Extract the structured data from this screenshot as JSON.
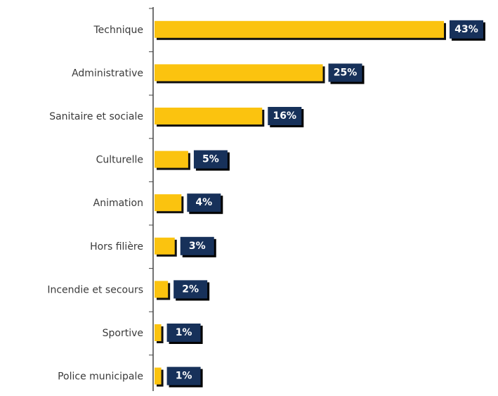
{
  "chart_data": {
    "type": "bar",
    "orientation": "horizontal",
    "categories": [
      "Technique",
      "Administrative",
      "Sanitaire et sociale",
      "Culturelle",
      "Animation",
      "Hors filière",
      "Incendie et secours",
      "Sportive",
      "Police municipale"
    ],
    "values": [
      43,
      25,
      16,
      5,
      4,
      3,
      2,
      1,
      1
    ],
    "value_labels": [
      "43%",
      "25%",
      "16%",
      "5%",
      "4%",
      "3%",
      "2%",
      "1%",
      "1%"
    ],
    "color": "#fbc30f",
    "label_color": "#17315a"
  }
}
